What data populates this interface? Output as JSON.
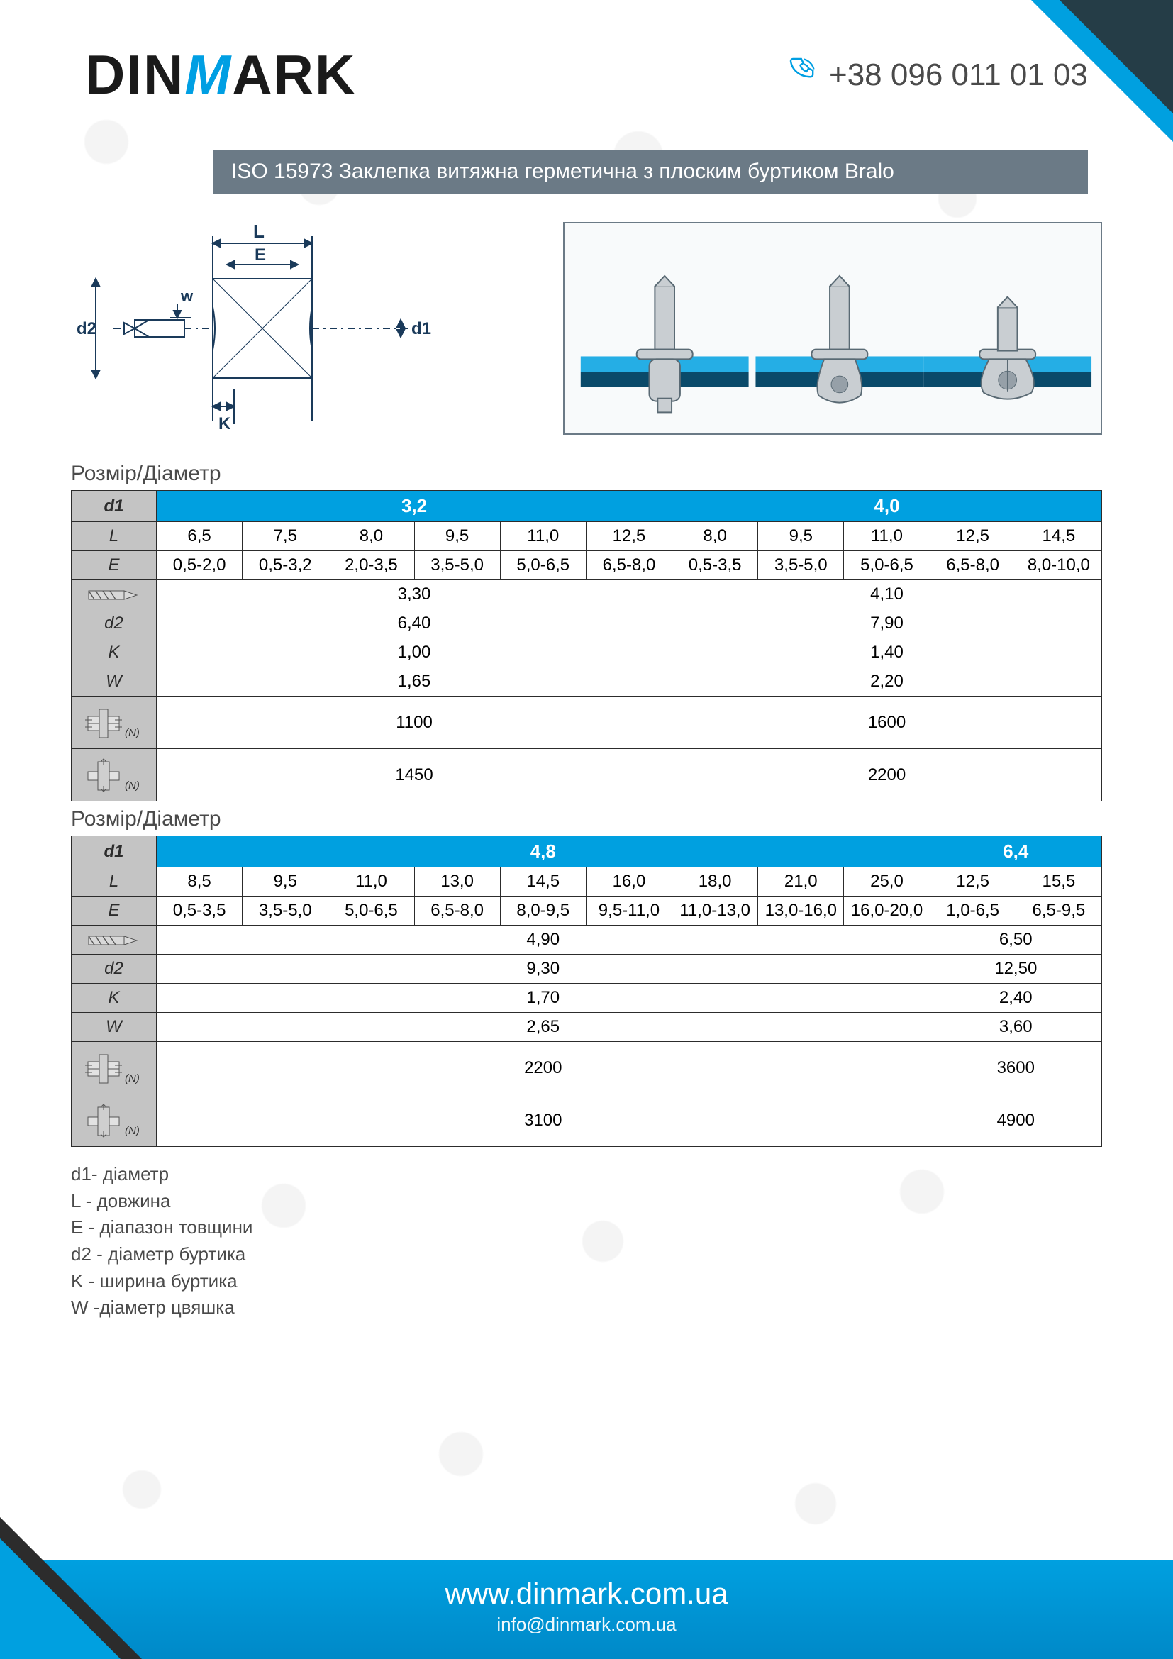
{
  "brand": {
    "text_pre": "DIN",
    "text_m": "M",
    "text_post": "ARK",
    "color_m": "#009fe3",
    "color_main": "#1a1a1a"
  },
  "phone": "+38 096 011 01 03",
  "title": "ISO 15973 Заклепка витяжна герметична з плоским буртиком Bralo",
  "title_bg": "#6b7a86",
  "accent": "#00a0e0",
  "section_label": "Розмір/Діаметр",
  "row_labels": {
    "d1": "d1",
    "L": "L",
    "E": "E",
    "drill": "drill-icon",
    "d2": "d2",
    "K": "K",
    "W": "W",
    "shear": "shear-n-icon",
    "tensile": "tensile-n-icon"
  },
  "n_label": "(N)",
  "table1": {
    "d1_groups": [
      {
        "value": "3,2",
        "span": 6,
        "L": [
          "6,5",
          "7,5",
          "8,0",
          "9,5",
          "11,0",
          "12,5"
        ],
        "E": [
          "0,5-2,0",
          "0,5-3,2",
          "2,0-3,5",
          "3,5-5,0",
          "5,0-6,5",
          "6,5-8,0"
        ],
        "drill": "3,30",
        "d2": "6,40",
        "K": "1,00",
        "W": "1,65",
        "shear": "1100",
        "tensile": "1450"
      },
      {
        "value": "4,0",
        "span": 5,
        "L": [
          "8,0",
          "9,5",
          "11,0",
          "12,5",
          "14,5"
        ],
        "E": [
          "0,5-3,5",
          "3,5-5,0",
          "5,0-6,5",
          "6,5-8,0",
          "8,0-10,0"
        ],
        "drill": "4,10",
        "d2": "7,90",
        "K": "1,40",
        "W": "2,20",
        "shear": "1600",
        "tensile": "2200"
      }
    ]
  },
  "table2": {
    "d1_groups": [
      {
        "value": "4,8",
        "span": 9,
        "L": [
          "8,5",
          "9,5",
          "11,0",
          "13,0",
          "14,5",
          "16,0",
          "18,0",
          "21,0",
          "25,0"
        ],
        "E": [
          "0,5-3,5",
          "3,5-5,0",
          "5,0-6,5",
          "6,5-8,0",
          "8,0-9,5",
          "9,5-11,0",
          "11,0-13,0",
          "13,0-16,0",
          "16,0-20,0"
        ],
        "drill": "4,90",
        "d2": "9,30",
        "K": "1,70",
        "W": "2,65",
        "shear": "2200",
        "tensile": "3100"
      },
      {
        "value": "6,4",
        "span": 2,
        "L": [
          "12,5",
          "15,5"
        ],
        "E": [
          "1,0-6,5",
          "6,5-9,5"
        ],
        "drill": "6,50",
        "d2": "12,50",
        "K": "2,40",
        "W": "3,60",
        "shear": "3600",
        "tensile": "4900"
      }
    ]
  },
  "legend": [
    "d1- діаметр",
    "L - довжина",
    "E - діапазон товщини",
    "d2 - діаметр буртика",
    "K - ширина буртика",
    "W -діаметр цвяшка"
  ],
  "diagram": {
    "labels": {
      "d2": "d2",
      "d1": "d1",
      "L": "L",
      "E": "E",
      "K": "K",
      "w": "w"
    }
  },
  "footer": {
    "url": "www.dinmark.com.ua",
    "email": "info@dinmark.com.ua"
  },
  "colors": {
    "header_gray": "#c4c4c4",
    "border": "#2c2c2c",
    "bg": "#ffffff",
    "text": "#4a4a4a"
  },
  "fonts": {
    "title_pt": 30,
    "cell_pt": 24,
    "logo_pt": 78,
    "phone_pt": 44,
    "footer_url_pt": 42
  }
}
